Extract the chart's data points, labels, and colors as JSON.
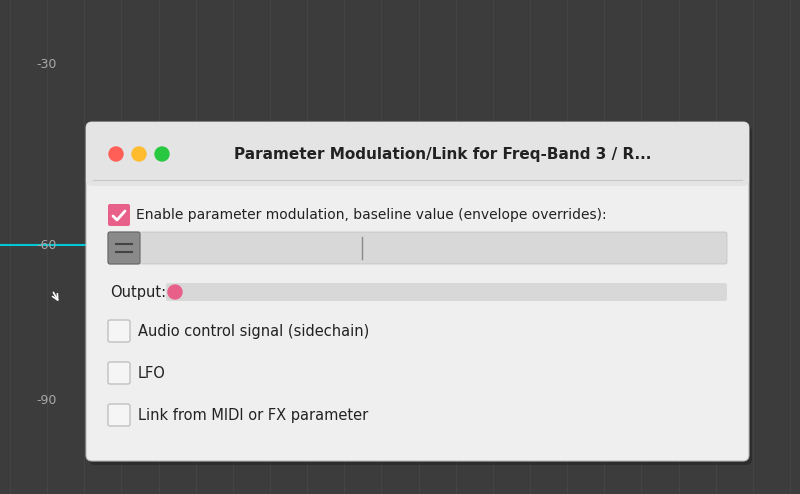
{
  "title": "Parameter Modulation/Link for Freq-Band 3 / R...",
  "bg_color": "#3c3c3c",
  "dialog_bg": "#efefef",
  "title_bar_color": "#e4e4e4",
  "title_fontsize": 11,
  "dot_red": "#ff5f57",
  "dot_yellow": "#febc2e",
  "dot_green": "#28c840",
  "checkbox_pink": "#e8608a",
  "checkbox_text": "Enable parameter modulation, baseline value (envelope overrides):",
  "output_label": "Output:",
  "output_dot_color": "#e8608a",
  "options": [
    "Audio control signal (sidechain)",
    "LFO",
    "Link from MIDI or FX parameter"
  ],
  "grid_color": "#474747",
  "label_color": "#aaaaaa",
  "text_color": "#222222",
  "separator_color": "#c8c8c8",
  "slider_bg": "#d8d8d8",
  "knob_bg": "#8a8a8a",
  "knob_edge": "#666666",
  "cb_edge": "#c0c0c0",
  "cb_bg": "#f5f5f5"
}
